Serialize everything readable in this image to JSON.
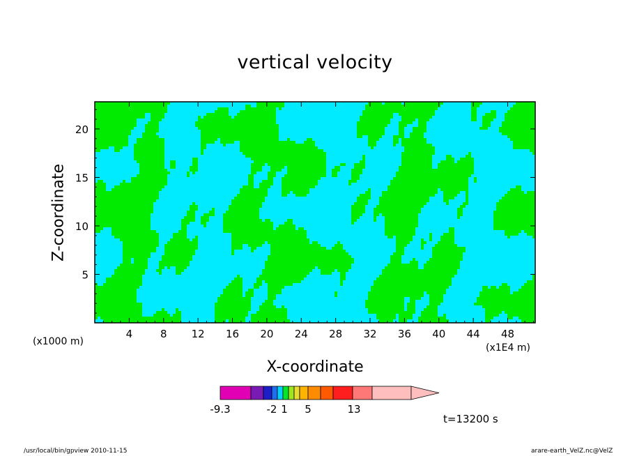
{
  "chart_data": {
    "type": "heatmap",
    "title": "vertical velocity",
    "xlabel": "X-coordinate",
    "ylabel": "Z-coordinate",
    "x_unit_left": "(x1000 m)",
    "x_unit_right": "(x1E4 m)",
    "x_ticks": [
      "4",
      "8",
      "12",
      "16",
      "20",
      "24",
      "28",
      "32",
      "36",
      "40",
      "44",
      "48"
    ],
    "y_ticks": [
      "5",
      "10",
      "15",
      "20"
    ],
    "xlim": [
      0,
      51.2
    ],
    "ylim": [
      0,
      22.8
    ],
    "colorbar": {
      "labels": [
        "-9.3",
        "-2",
        "1",
        "5",
        "13"
      ],
      "colors": [
        "#e100b4",
        "#7a1ab5",
        "#1e1ec8",
        "#1e6ef0",
        "#00d2ff",
        "#00e628",
        "#a0e61e",
        "#e6dc32",
        "#ffb400",
        "#ff8c00",
        "#ff5a00",
        "#ff1e1e",
        "#ff7878",
        "#ffbebe"
      ]
    },
    "shown_field_colors": {
      "negative": "#00ebff",
      "positive": "#00eb00"
    },
    "time": "t=13200 s",
    "footer_left": "/usr/local/bin/gpview   2010-11-15",
    "footer_right": "arare-earth_VelZ.nc@VelZ"
  }
}
